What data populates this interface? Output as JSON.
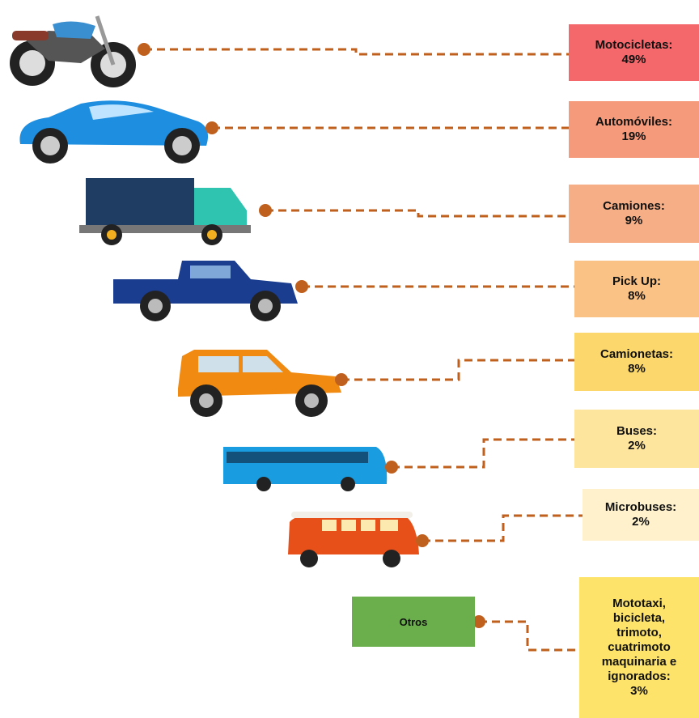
{
  "items": [
    {
      "label_lines": [
        "Motocicletas:"
      ],
      "percent": "49%"
    },
    {
      "label_lines": [
        "Automóviles:"
      ],
      "percent": "19%"
    },
    {
      "label_lines": [
        "Camiones:"
      ],
      "percent": "9%"
    },
    {
      "label_lines": [
        "Pick Up:"
      ],
      "percent": "8%"
    },
    {
      "label_lines": [
        "Camionetas:"
      ],
      "percent": "8%"
    },
    {
      "label_lines": [
        "Buses:"
      ],
      "percent": "2%"
    },
    {
      "label_lines": [
        "Microbuses:"
      ],
      "percent": "2%"
    },
    {
      "label_lines": [
        "Mototaxi,",
        "bicicleta,",
        "trimoto,",
        "cuatrimoto",
        "maquinaria e",
        "ignorados:"
      ],
      "percent": "3%"
    }
  ],
  "otros": "Otros"
}
